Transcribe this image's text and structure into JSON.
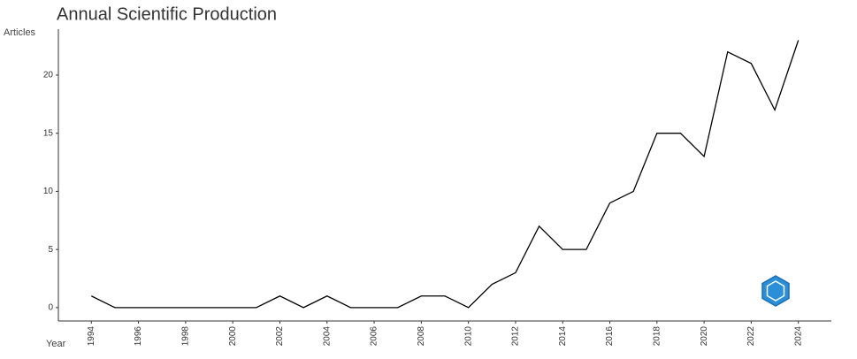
{
  "chart_data": {
    "type": "line",
    "title": "Annual Scientific Production",
    "y_label": "Articles",
    "x_label": "Year",
    "x": [
      1994,
      1995,
      1996,
      1997,
      1998,
      1999,
      2000,
      2001,
      2002,
      2003,
      2004,
      2005,
      2006,
      2007,
      2008,
      2009,
      2010,
      2011,
      2012,
      2013,
      2014,
      2015,
      2016,
      2017,
      2018,
      2019,
      2020,
      2021,
      2022,
      2023,
      2024
    ],
    "series": [
      {
        "name": "Articles",
        "color": "#000000",
        "values": [
          1,
          0,
          0,
          0,
          0,
          0,
          0,
          0,
          1,
          0,
          1,
          0,
          0,
          0,
          1,
          1,
          0,
          2,
          3,
          7,
          5,
          5,
          9,
          10,
          15,
          15,
          13,
          22,
          21,
          17,
          23
        ]
      }
    ],
    "xlim": [
      1992.6,
      2025.4
    ],
    "xticks": [
      1994,
      1996,
      1998,
      2000,
      2002,
      2004,
      2006,
      2008,
      2010,
      2012,
      2014,
      2016,
      2018,
      2020,
      2022,
      2024
    ],
    "ylim": [
      -1.15,
      23.95
    ],
    "yticks": [
      0,
      5,
      10,
      15,
      20
    ],
    "grid": false
  }
}
